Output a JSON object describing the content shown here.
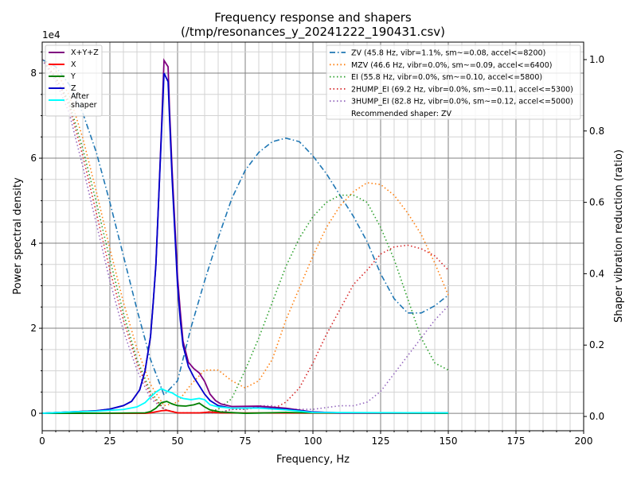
{
  "chart_data": {
    "type": "line",
    "title": "Frequency response and shapers",
    "subtitle": "(/tmp/resonances_y_20241222_190431.csv)",
    "xlabel": "Frequency, Hz",
    "ylabel": "Power spectral density",
    "ylabel_right": "Shaper vibration reduction (ratio)",
    "y_offset_label": "1e4",
    "xlim": [
      0,
      200
    ],
    "ylim": [
      -4100,
      87300
    ],
    "ylim_right": [
      -0.04,
      1.049
    ],
    "xticks": [
      0,
      25,
      50,
      75,
      100,
      125,
      150,
      175,
      200
    ],
    "yticks": [
      0,
      20000,
      40000,
      60000,
      80000
    ],
    "ytick_labels": [
      "0",
      "2",
      "4",
      "6",
      "8"
    ],
    "yticks_right": [
      "0.0",
      "0.2",
      "0.4",
      "0.6",
      "0.8",
      "1.0"
    ],
    "grid": true,
    "legend_left": "top-left",
    "legend_right": "top-right",
    "psd_series": [
      {
        "name": "X+Y+Z",
        "color": "#800080",
        "points": [
          [
            0,
            0
          ],
          [
            10,
            300
          ],
          [
            20,
            600
          ],
          [
            25,
            1000
          ],
          [
            30,
            1800
          ],
          [
            33,
            2800
          ],
          [
            36,
            5500
          ],
          [
            38,
            10000
          ],
          [
            40,
            18000
          ],
          [
            41,
            26000
          ],
          [
            42,
            35000
          ],
          [
            43,
            50000
          ],
          [
            44,
            66000
          ],
          [
            45,
            83000
          ],
          [
            46.5,
            81500
          ],
          [
            47,
            72000
          ],
          [
            48,
            57000
          ],
          [
            50,
            32000
          ],
          [
            51,
            24000
          ],
          [
            52,
            17000
          ],
          [
            54,
            12000
          ],
          [
            56,
            10500
          ],
          [
            58,
            9500
          ],
          [
            60,
            7500
          ],
          [
            62,
            4500
          ],
          [
            64,
            3000
          ],
          [
            66,
            2200
          ],
          [
            70,
            1600
          ],
          [
            80,
            1700
          ],
          [
            90,
            1200
          ],
          [
            100,
            300
          ],
          [
            110,
            100
          ],
          [
            150,
            100
          ]
        ]
      },
      {
        "name": "X",
        "color": "#ff0000",
        "points": [
          [
            0,
            0
          ],
          [
            38,
            0
          ],
          [
            40,
            100
          ],
          [
            44,
            600
          ],
          [
            46,
            700
          ],
          [
            48,
            400
          ],
          [
            50,
            100
          ],
          [
            58,
            100
          ],
          [
            62,
            300
          ],
          [
            66,
            100
          ],
          [
            150,
            0
          ]
        ]
      },
      {
        "name": "Y",
        "color": "#008000",
        "points": [
          [
            0,
            0
          ],
          [
            20,
            0
          ],
          [
            38,
            100
          ],
          [
            40,
            400
          ],
          [
            42,
            1200
          ],
          [
            44,
            2500
          ],
          [
            46,
            2800
          ],
          [
            48,
            2200
          ],
          [
            50,
            1800
          ],
          [
            53,
            1700
          ],
          [
            56,
            2000
          ],
          [
            58,
            2400
          ],
          [
            60,
            1500
          ],
          [
            62,
            800
          ],
          [
            66,
            300
          ],
          [
            75,
            0
          ],
          [
            90,
            200
          ],
          [
            100,
            100
          ],
          [
            150,
            0
          ]
        ]
      },
      {
        "name": "Z",
        "color": "#0000cd",
        "points": [
          [
            0,
            0
          ],
          [
            10,
            300
          ],
          [
            20,
            600
          ],
          [
            25,
            1000
          ],
          [
            30,
            1800
          ],
          [
            33,
            2800
          ],
          [
            36,
            5500
          ],
          [
            38,
            10000
          ],
          [
            40,
            18000
          ],
          [
            41,
            26000
          ],
          [
            42,
            35000
          ],
          [
            43,
            50000
          ],
          [
            44,
            65000
          ],
          [
            45,
            80000
          ],
          [
            46.5,
            78000
          ],
          [
            47,
            70000
          ],
          [
            48,
            55000
          ],
          [
            50,
            30000
          ],
          [
            51,
            22000
          ],
          [
            52,
            16000
          ],
          [
            54,
            11000
          ],
          [
            56,
            8500
          ],
          [
            58,
            6500
          ],
          [
            60,
            4500
          ],
          [
            62,
            3000
          ],
          [
            65,
            1800
          ],
          [
            70,
            1200
          ],
          [
            80,
            1300
          ],
          [
            90,
            1000
          ],
          [
            100,
            300
          ],
          [
            110,
            100
          ],
          [
            150,
            100
          ]
        ]
      },
      {
        "name": "After\nshaper",
        "color": "#00ffff",
        "points": [
          [
            0,
            0
          ],
          [
            10,
            300
          ],
          [
            20,
            500
          ],
          [
            30,
            900
          ],
          [
            35,
            1500
          ],
          [
            38,
            2500
          ],
          [
            40,
            3800
          ],
          [
            42,
            5000
          ],
          [
            44,
            5800
          ],
          [
            46,
            5200
          ],
          [
            48,
            4800
          ],
          [
            50,
            4000
          ],
          [
            52,
            3500
          ],
          [
            55,
            3200
          ],
          [
            58,
            3500
          ],
          [
            60,
            3200
          ],
          [
            62,
            2000
          ],
          [
            65,
            1500
          ],
          [
            70,
            1200
          ],
          [
            80,
            1200
          ],
          [
            90,
            800
          ],
          [
            100,
            200
          ],
          [
            150,
            100
          ]
        ]
      }
    ],
    "shaper_x": [
      0,
      5,
      10,
      15,
      20,
      25,
      30,
      35,
      40,
      45,
      50,
      55,
      60,
      65,
      70,
      75,
      80,
      85,
      90,
      95,
      100,
      105,
      110,
      115,
      120,
      125,
      130,
      135,
      140,
      145,
      150
    ],
    "shapers": [
      {
        "name": "ZV (45.8 Hz, vibr=1.1%, sm~=0.08, accel<=8200)",
        "color": "#1f77b4",
        "style": "dashdot",
        "values": [
          1.0,
          0.98,
          0.93,
          0.85,
          0.74,
          0.6,
          0.45,
          0.3,
          0.16,
          0.06,
          0.1,
          0.25,
          0.38,
          0.5,
          0.61,
          0.69,
          0.74,
          0.77,
          0.78,
          0.77,
          0.73,
          0.68,
          0.62,
          0.56,
          0.49,
          0.4,
          0.33,
          0.29,
          0.29,
          0.31,
          0.34
        ]
      },
      {
        "name": "MZV (46.6 Hz, vibr=0.0%, sm~=0.09, accel<=6400)",
        "color": "#ff7f0e",
        "style": "dotted",
        "values": [
          1.0,
          0.97,
          0.9,
          0.78,
          0.63,
          0.47,
          0.32,
          0.19,
          0.09,
          0.03,
          0.04,
          0.09,
          0.13,
          0.13,
          0.1,
          0.08,
          0.1,
          0.16,
          0.27,
          0.36,
          0.45,
          0.53,
          0.59,
          0.63,
          0.655,
          0.65,
          0.62,
          0.57,
          0.51,
          0.43,
          0.34
        ]
      },
      {
        "name": "EI (55.8 Hz, vibr=0.0%, sm~=0.10, accel<=5800)",
        "color": "#2ca02c",
        "style": "dotted",
        "values": [
          1.0,
          0.95,
          0.88,
          0.75,
          0.6,
          0.44,
          0.29,
          0.16,
          0.07,
          0.02,
          0.01,
          0.01,
          0.01,
          0.02,
          0.05,
          0.13,
          0.22,
          0.32,
          0.42,
          0.5,
          0.56,
          0.6,
          0.62,
          0.62,
          0.6,
          0.53,
          0.44,
          0.33,
          0.22,
          0.15,
          0.13
        ]
      },
      {
        "name": "2HUMP_EI (69.2 Hz, vibr=0.0%, sm~=0.11, accel<=5300)",
        "color": "#d62728",
        "style": "dotted",
        "values": [
          1.0,
          0.95,
          0.87,
          0.73,
          0.57,
          0.41,
          0.27,
          0.15,
          0.06,
          0.02,
          0.01,
          0.01,
          0.01,
          0.01,
          0.02,
          0.02,
          0.025,
          0.02,
          0.04,
          0.08,
          0.15,
          0.23,
          0.3,
          0.37,
          0.41,
          0.455,
          0.475,
          0.48,
          0.47,
          0.45,
          0.41
        ]
      },
      {
        "name": "3HUMP_EI (82.8 Hz, vibr=0.0%, sm~=0.12, accel<=5000)",
        "color": "#9467bd",
        "style": "dotted",
        "values": [
          1.0,
          0.94,
          0.85,
          0.7,
          0.54,
          0.38,
          0.24,
          0.13,
          0.05,
          0.02,
          0.01,
          0.01,
          0.01,
          0.01,
          0.02,
          0.02,
          0.03,
          0.03,
          0.02,
          0.02,
          0.02,
          0.025,
          0.03,
          0.03,
          0.04,
          0.07,
          0.12,
          0.17,
          0.22,
          0.27,
          0.31
        ]
      }
    ],
    "recommended": "Recommended shaper: ZV"
  }
}
